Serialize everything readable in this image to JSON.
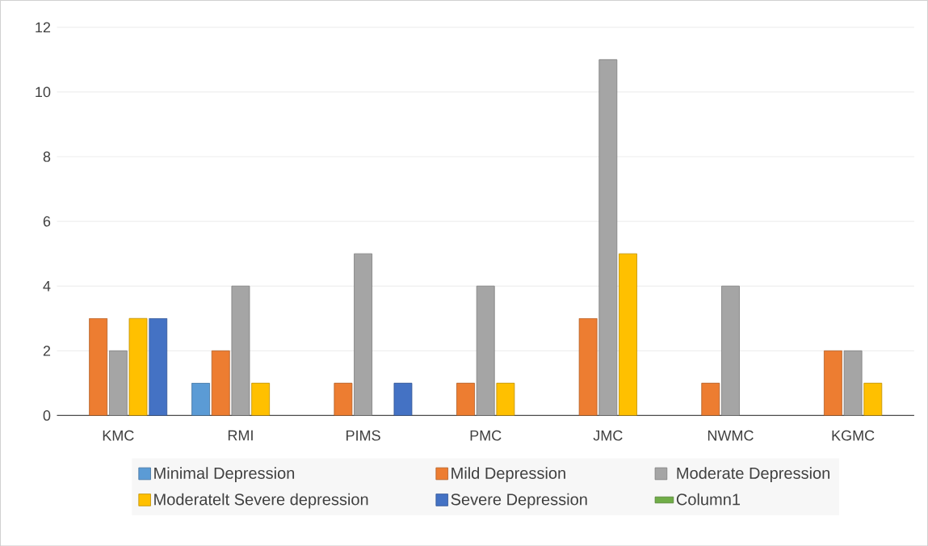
{
  "chart_data": {
    "type": "bar",
    "categories": [
      "KMC",
      "RMI",
      "PIMS",
      "PMC",
      "JMC",
      "NWMC",
      "KGMC"
    ],
    "series": [
      {
        "name": "Minimal Depression",
        "color": "#5b9bd5",
        "values": [
          null,
          1,
          null,
          null,
          null,
          null,
          null
        ]
      },
      {
        "name": "Mild Depression",
        "color": "#ed7d31",
        "values": [
          3,
          2,
          1,
          1,
          3,
          1,
          2
        ]
      },
      {
        "name": "Moderate Depression",
        "color": "#a5a5a5",
        "values": [
          2,
          4,
          5,
          4,
          11,
          4,
          2
        ]
      },
      {
        "name": "Moderatelt Severe depression",
        "color": "#ffc000",
        "values": [
          3,
          1,
          null,
          1,
          5,
          null,
          1
        ]
      },
      {
        "name": "Severe Depression",
        "color": "#4472c4",
        "values": [
          3,
          null,
          1,
          null,
          null,
          null,
          null
        ]
      },
      {
        "name": "Column1",
        "color": "#70ad47",
        "values": [
          null,
          null,
          null,
          null,
          null,
          null,
          null
        ]
      }
    ],
    "ylim": [
      0,
      12
    ],
    "yticks": [
      0,
      2,
      4,
      6,
      8,
      10,
      12
    ],
    "grid": "y",
    "legend": "bottom"
  }
}
